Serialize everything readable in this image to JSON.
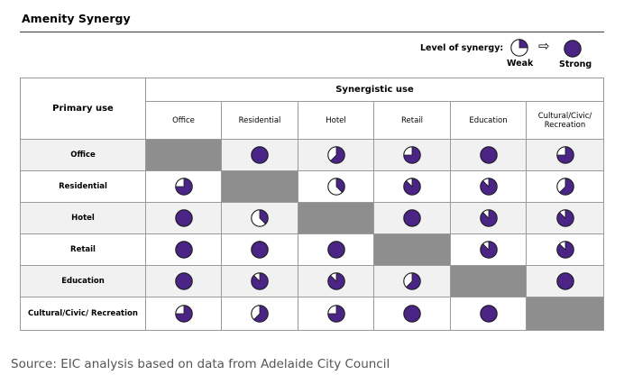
{
  "chart_data": {
    "type": "table",
    "title": "Amenity Synergy",
    "row_header_label": "Primary use",
    "column_group_label": "Synergistic use",
    "legend": {
      "label": "Level of synergy:",
      "weak_label": "Weak",
      "strong_label": "Strong",
      "weak_level": 0.25,
      "strong_level": 1.0,
      "fill_color": "#4b2586",
      "na_color": "#8e8e8e"
    },
    "columns": [
      "Office",
      "Residential",
      "Hotel",
      "Retail",
      "Education",
      "Cultural/Civic/ Recreation"
    ],
    "rows": [
      "Office",
      "Residential",
      "Hotel",
      "Retail",
      "Education",
      "Cultural/Civic/ Recreation"
    ],
    "values": [
      [
        null,
        1.0,
        0.625,
        0.75,
        1.0,
        0.75
      ],
      [
        0.75,
        null,
        0.375,
        0.875,
        0.875,
        0.625
      ],
      [
        1.0,
        0.375,
        null,
        1.0,
        0.875,
        0.875
      ],
      [
        1.0,
        1.0,
        1.0,
        null,
        0.875,
        0.875
      ],
      [
        1.0,
        0.875,
        0.875,
        0.625,
        null,
        1.0
      ],
      [
        0.75,
        0.625,
        0.75,
        1.0,
        1.0,
        null
      ]
    ]
  },
  "source": "Source: EIC analysis based on data from Adelaide City Council"
}
